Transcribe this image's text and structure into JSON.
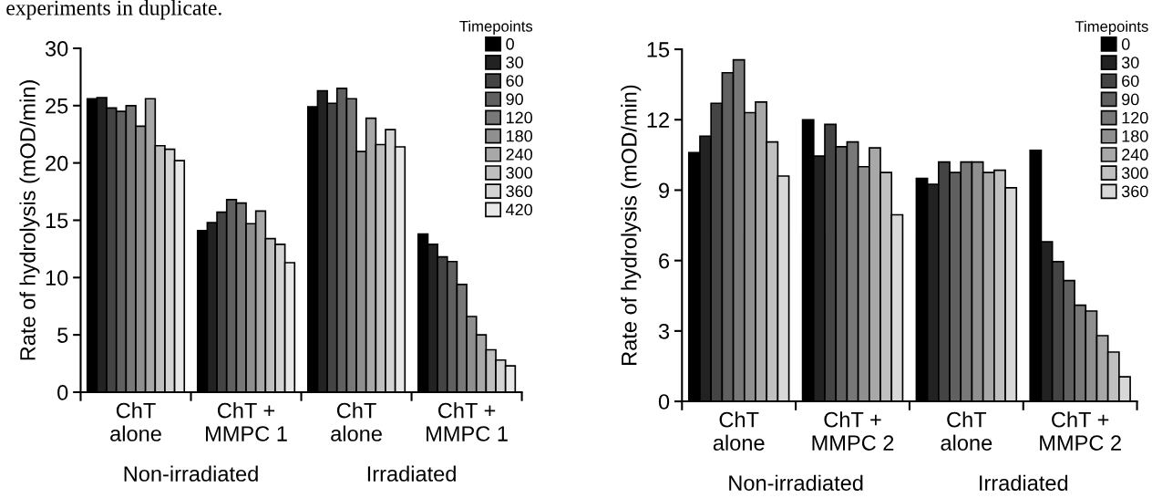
{
  "chart_data": [
    {
      "type": "bar",
      "subtitle": "experiments in duplicate.",
      "ylabel": "Rate of hydrolysis (mOD/min)",
      "legend_title": "Timepoints",
      "legend": "top right",
      "categories": [
        "ChT\nalone",
        "ChT +\nMMPC 1",
        "ChT\nalone",
        "ChT +\nMMPC 1"
      ],
      "annotations": [
        "Non-irradiated",
        "Irradiated"
      ],
      "ylim": [
        0,
        30
      ],
      "yticks": [
        0,
        5,
        10,
        15,
        20,
        25,
        30
      ],
      "grid": false,
      "series": [
        {
          "name": "0",
          "color": "#000000",
          "values": [
            25.6,
            14.1,
            24.9,
            13.8
          ]
        },
        {
          "name": "30",
          "color": "#222222",
          "values": [
            25.7,
            14.8,
            26.3,
            12.9
          ]
        },
        {
          "name": "60",
          "color": "#444444",
          "values": [
            24.8,
            15.7,
            25.2,
            11.8
          ]
        },
        {
          "name": "90",
          "color": "#606060",
          "values": [
            24.5,
            16.8,
            26.5,
            11.4
          ]
        },
        {
          "name": "120",
          "color": "#787878",
          "values": [
            25.0,
            16.5,
            25.6,
            9.4
          ]
        },
        {
          "name": "180",
          "color": "#8f8f8f",
          "values": [
            23.2,
            14.7,
            21.0,
            6.6
          ]
        },
        {
          "name": "240",
          "color": "#a8a8a8",
          "values": [
            25.6,
            15.8,
            23.9,
            5.0
          ]
        },
        {
          "name": "300",
          "color": "#bfbfbf",
          "values": [
            21.5,
            13.4,
            21.6,
            3.7
          ]
        },
        {
          "name": "360",
          "color": "#d4d4d4",
          "values": [
            21.2,
            12.9,
            22.9,
            2.8
          ]
        },
        {
          "name": "420",
          "color": "#e8e8e8",
          "values": [
            20.2,
            11.3,
            21.4,
            2.3
          ]
        }
      ]
    },
    {
      "type": "bar",
      "ylabel": "Rate of hydrolysis (mOD/min)",
      "legend_title": "Timepoints",
      "legend": "top right",
      "categories": [
        "ChT\nalone",
        "ChT +\nMMPC 2",
        "ChT\nalone",
        "ChT +\nMMPC 2"
      ],
      "annotations": [
        "Non-irradiated",
        "Irradiated"
      ],
      "ylim": [
        0,
        15
      ],
      "yticks": [
        0,
        3,
        6,
        9,
        12,
        15
      ],
      "grid": false,
      "series": [
        {
          "name": "0",
          "color": "#000000",
          "values": [
            10.6,
            12.0,
            9.5,
            10.7
          ]
        },
        {
          "name": "30",
          "color": "#222222",
          "values": [
            11.3,
            10.45,
            9.25,
            6.8
          ]
        },
        {
          "name": "60",
          "color": "#444444",
          "values": [
            12.7,
            11.8,
            10.2,
            5.95
          ]
        },
        {
          "name": "90",
          "color": "#606060",
          "values": [
            14.0,
            10.85,
            9.75,
            5.15
          ]
        },
        {
          "name": "120",
          "color": "#787878",
          "values": [
            14.55,
            11.05,
            10.2,
            4.1
          ]
        },
        {
          "name": "180",
          "color": "#8f8f8f",
          "values": [
            12.3,
            10.0,
            10.2,
            3.85
          ]
        },
        {
          "name": "240",
          "color": "#a8a8a8",
          "values": [
            12.75,
            10.8,
            9.75,
            2.8
          ]
        },
        {
          "name": "300",
          "color": "#c0c0c0",
          "values": [
            11.05,
            9.75,
            9.85,
            2.1
          ]
        },
        {
          "name": "360",
          "color": "#d8d8d8",
          "values": [
            9.6,
            7.95,
            9.1,
            1.05
          ]
        }
      ]
    }
  ]
}
